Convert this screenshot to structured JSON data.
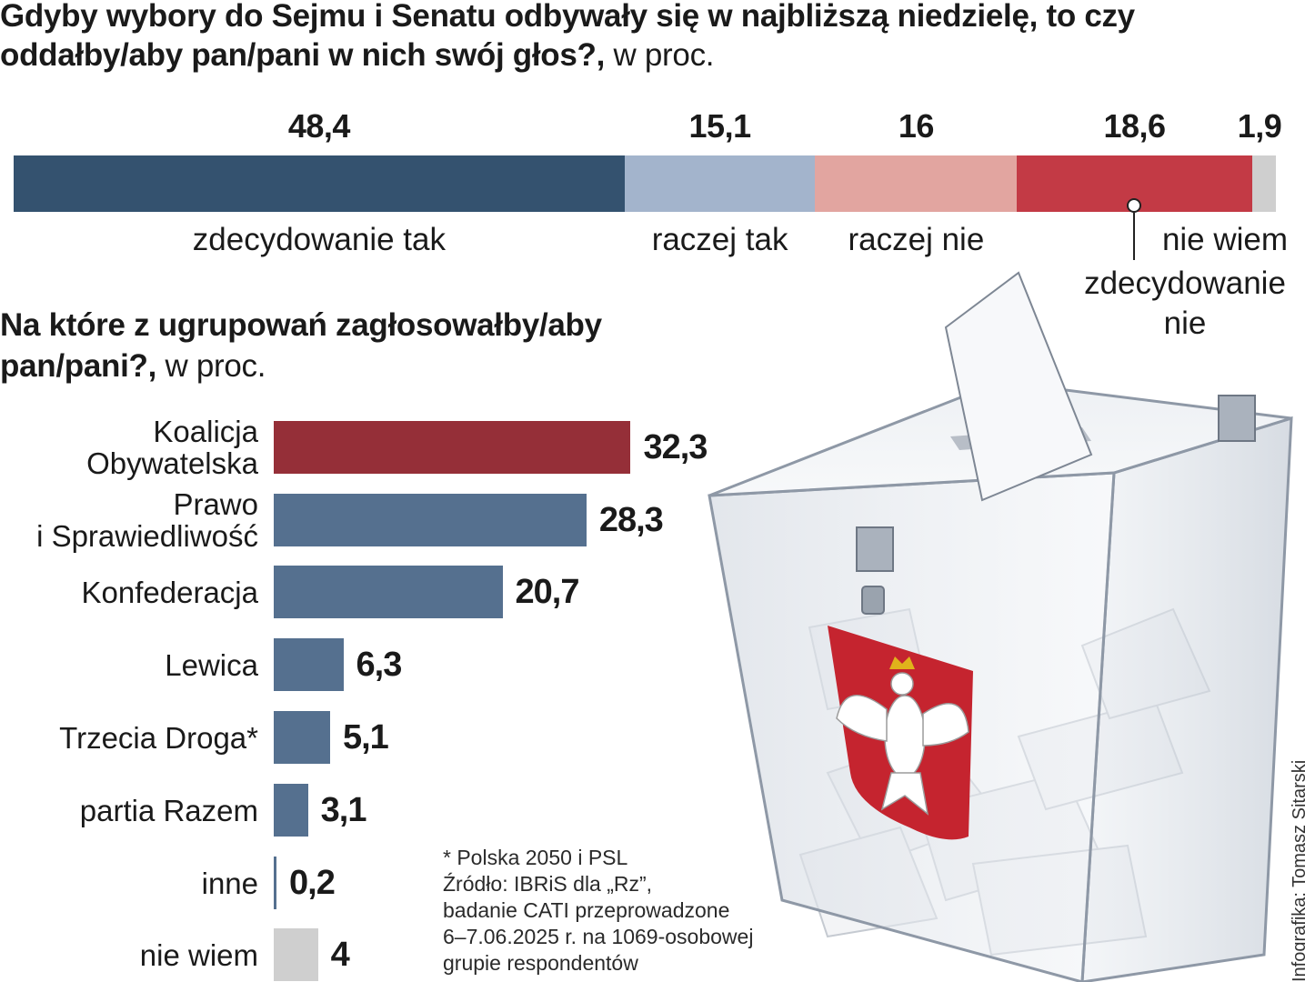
{
  "chart_data": [
    {
      "type": "bar",
      "orientation": "horizontal-stacked",
      "title": "Gdyby wybory do Sejmu i Senatu odbywały się w najbliższą niedzielę, to czy oddałby/aby pan/pani w nich swój głos?,",
      "unit": "w proc.",
      "categories": [
        "zdecydowanie tak",
        "raczej tak",
        "raczej nie",
        "zdecydowanie nie",
        "nie wiem"
      ],
      "values": [
        48.4,
        15.1,
        16,
        18.6,
        1.9
      ],
      "value_labels": [
        "48,4",
        "15,1",
        "16",
        "18,6",
        "1,9"
      ],
      "colors": [
        "#34526f",
        "#a3b4cc",
        "#e2a5a0",
        "#c33a45",
        "#cfcfcf"
      ]
    },
    {
      "type": "bar",
      "orientation": "horizontal",
      "title": "Na które z ugrupowań zagłosowałby/aby pan/pani?,",
      "unit": "w proc.",
      "categories": [
        "Koalicja Obywatelska",
        "Prawo i Sprawiedliwość",
        "Konfederacja",
        "Lewica",
        "Trzecia Droga*",
        "partia Razem",
        "inne",
        "nie wiem"
      ],
      "category_lines": [
        [
          "Koalicja",
          "Obywatelska"
        ],
        [
          "Prawo",
          "i Sprawiedliwość"
        ],
        [
          "Konfederacja"
        ],
        [
          "Lewica"
        ],
        [
          "Trzecia Droga*"
        ],
        [
          "partia Razem"
        ],
        [
          "inne"
        ],
        [
          "nie wiem"
        ]
      ],
      "values": [
        32.3,
        28.3,
        20.7,
        6.3,
        5.1,
        3.1,
        0.2,
        4
      ],
      "value_labels": [
        "32,3",
        "28,3",
        "20,7",
        "6,3",
        "5,1",
        "3,1",
        "0,2",
        "4"
      ],
      "colors": [
        "#952f38",
        "#55708f",
        "#55708f",
        "#55708f",
        "#55708f",
        "#55708f",
        "#55708f",
        "#cfcfcf"
      ]
    }
  ],
  "footnote": [
    "* Polska 2050 i PSL",
    "Źródło: IBRiS dla „Rz”,",
    "badanie CATI przeprowadzone",
    "6–7.06.2025 r. na 1069-osobowej",
    "grupie respondentów"
  ],
  "credit": "Infografika: Tomasz Sitarski",
  "illustration": "ballot-box-with-polish-eagle"
}
